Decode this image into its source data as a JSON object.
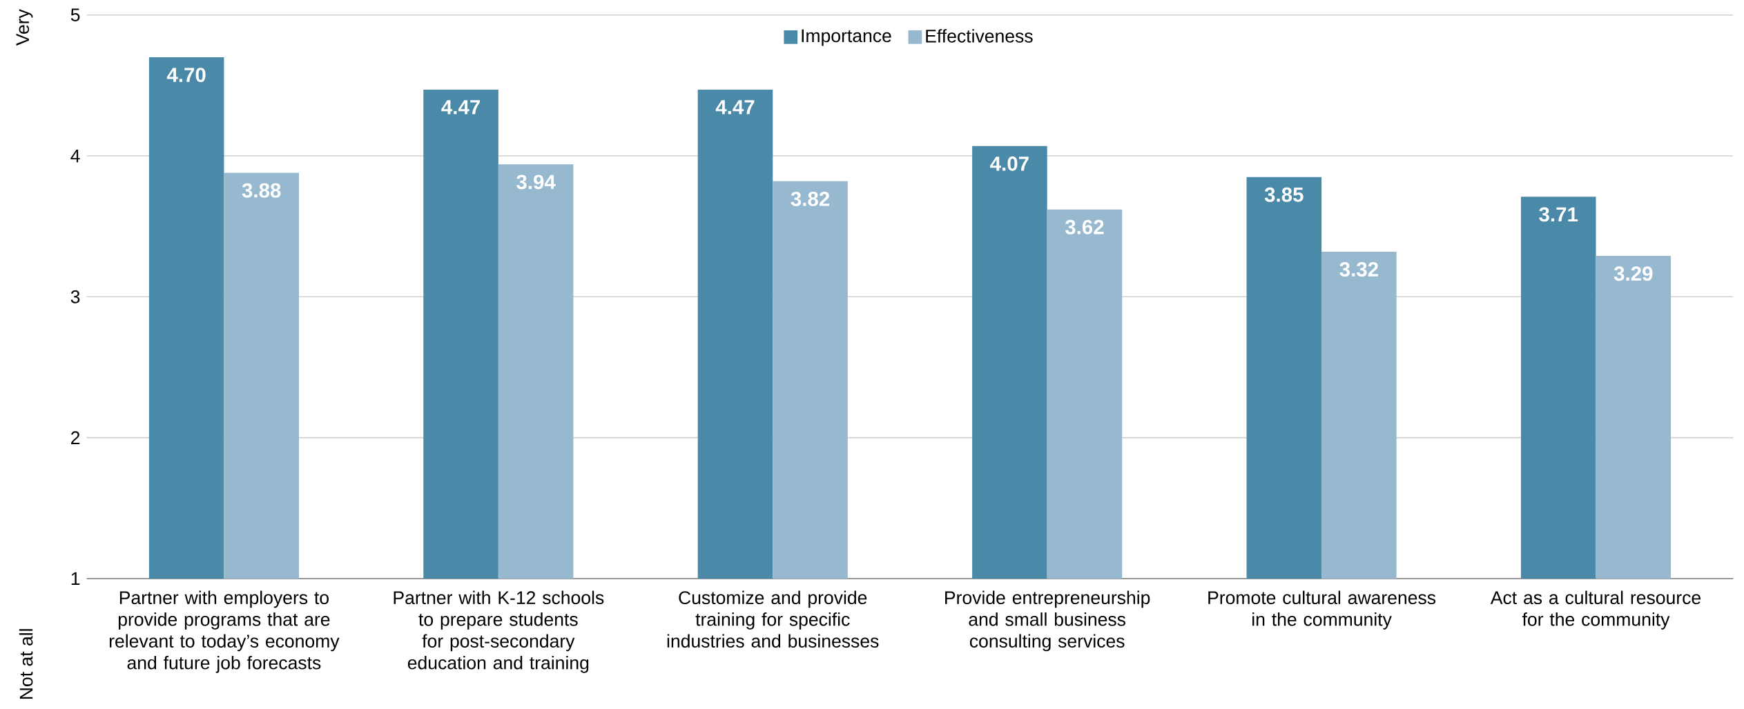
{
  "chart_data": {
    "type": "bar",
    "categories": [
      "Partner with employers to provide programs that are relevant to today’s economy and future job forecasts",
      "Partner with K-12 schools to prepare students for post-secondary education and training",
      "Customize and provide training for specific industries and businesses",
      "Provide entrepreneurship and small business consulting services",
      "Promote cultural awareness in the community",
      "Act as a cultural resource for the community"
    ],
    "series": [
      {
        "name": "Importance",
        "color": "#4a89a8",
        "values": [
          4.7,
          4.47,
          4.47,
          4.07,
          3.85,
          3.71
        ],
        "value_labels": [
          "4.70",
          "4.47",
          "4.47",
          "4.07",
          "3.85",
          "3.71"
        ]
      },
      {
        "name": "Effectiveness",
        "color": "#97b9d0",
        "values": [
          3.88,
          3.94,
          3.82,
          3.62,
          3.32,
          3.29
        ],
        "value_labels": [
          "3.88",
          "3.94",
          "3.82",
          "3.62",
          "3.32",
          "3.29"
        ]
      }
    ],
    "ylim": [
      1,
      5
    ],
    "yticks": [
      1,
      2,
      3,
      4,
      5
    ],
    "grid": "y",
    "legend": "top",
    "annotations": [
      "Very",
      "Not at all"
    ]
  }
}
